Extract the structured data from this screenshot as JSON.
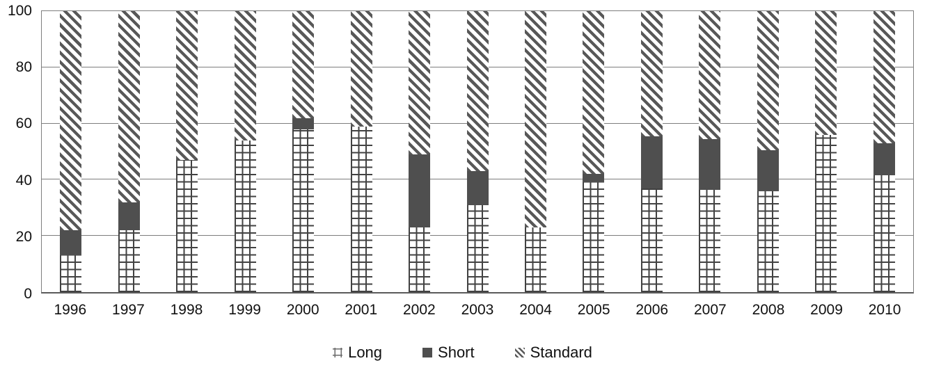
{
  "chart_data": {
    "type": "bar",
    "stacked": true,
    "orientation": "vertical",
    "title": "",
    "xlabel": "",
    "ylabel": "",
    "categories": [
      "1996",
      "1997",
      "1998",
      "1999",
      "2000",
      "2001",
      "2002",
      "2003",
      "2004",
      "2005",
      "2006",
      "2007",
      "2008",
      "2009",
      "2010"
    ],
    "series": [
      {
        "name": "Long",
        "pattern": "grid",
        "values": [
          13,
          22,
          47,
          54,
          58,
          59,
          23,
          31,
          23,
          39,
          37,
          36.5,
          36,
          56,
          41.5
        ]
      },
      {
        "name": "Short",
        "pattern": "solid",
        "values": [
          9,
          10,
          0,
          0,
          4,
          0,
          26,
          12,
          0,
          3,
          18.5,
          18,
          14.5,
          0,
          11.5
        ]
      },
      {
        "name": "Standard",
        "pattern": "diagonal-hatch",
        "values": [
          78,
          68,
          53,
          46,
          38,
          41,
          51,
          57,
          77,
          58,
          44.5,
          45.5,
          49.5,
          44,
          47
        ]
      }
    ],
    "ylim": [
      0,
      100
    ],
    "yticks": [
      0,
      20,
      40,
      60,
      80,
      100
    ],
    "grid": true,
    "legend_position": "bottom-center"
  },
  "colors": {
    "segment_dark": "#4f4f4f",
    "hatch_stripe": "#585858",
    "grid_pattern_line": "#424242",
    "axis_line": "#7d7d7d",
    "text": "#1c1c1c",
    "background": "#ffffff"
  }
}
